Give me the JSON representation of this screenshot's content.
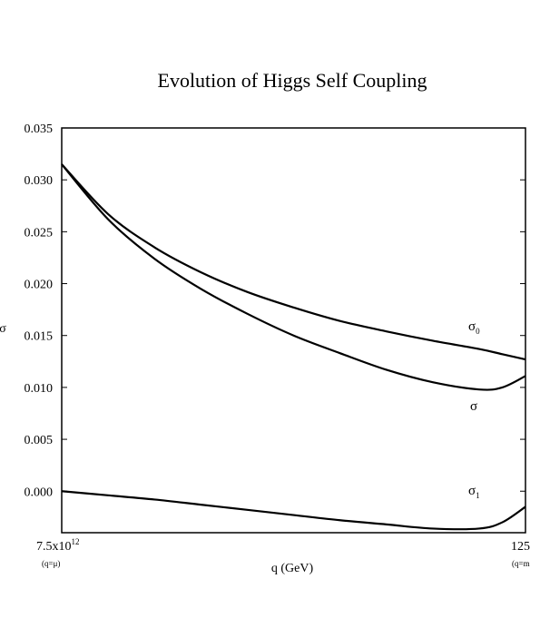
{
  "chart_data": {
    "type": "line",
    "title": "Evolution of Higgs Self Coupling",
    "xlabel": "q (GeV)",
    "ylabel": "σ",
    "x_ticks": {
      "left": {
        "base": "7.5x10",
        "exp": "12",
        "sub": "(q=μ)"
      },
      "right": {
        "base": "125",
        "sub": "(q=m"
      }
    },
    "x": [
      0,
      0.1,
      0.2,
      0.3,
      0.4,
      0.5,
      0.6,
      0.7,
      0.8,
      0.9,
      0.95,
      1.0
    ],
    "xlim": [
      0,
      1
    ],
    "ylim": [
      -0.004,
      0.035
    ],
    "y_ticks": [
      0.0,
      0.005,
      0.01,
      0.015,
      0.02,
      0.025,
      0.03,
      0.035
    ],
    "y_tick_labels": [
      "0.000",
      "0.005",
      "0.010",
      "0.015",
      "0.020",
      "0.025",
      "0.030",
      "0.035"
    ],
    "grid": false,
    "series": [
      {
        "name": "σ0",
        "label_base": "σ",
        "label_sub": "0",
        "values": [
          0.0315,
          0.0267,
          0.0235,
          0.0211,
          0.0192,
          0.0177,
          0.0164,
          0.0154,
          0.0145,
          0.0137,
          0.0132,
          0.0127
        ]
      },
      {
        "name": "σ",
        "label_base": "σ",
        "label_sub": "",
        "values": [
          0.0315,
          0.0262,
          0.0224,
          0.0195,
          0.0171,
          0.015,
          0.0133,
          0.0117,
          0.0105,
          0.0098,
          0.01,
          0.0111
        ]
      },
      {
        "name": "σ1",
        "label_base": "σ",
        "label_sub": "1",
        "values": [
          0.0,
          -0.0004,
          -0.0008,
          -0.0013,
          -0.0018,
          -0.0023,
          -0.0028,
          -0.0032,
          -0.0036,
          -0.0036,
          -0.003,
          -0.0015
        ]
      }
    ]
  }
}
